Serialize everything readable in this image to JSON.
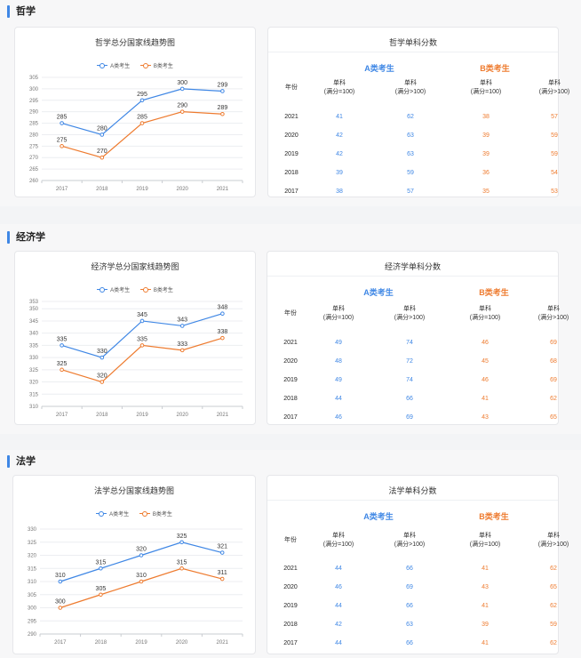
{
  "sections": [
    {
      "title": "哲学",
      "chart": {
        "title": "哲学总分国家线趋势图",
        "legend": [
          "A类考生",
          "B类考生"
        ],
        "colors": [
          "#3f87e5",
          "#ee7b2f"
        ]
      },
      "table": {
        "title": "哲学单科分数",
        "group_a": "A类考生",
        "group_b": "B类考生",
        "col_year": "年份",
        "col_h1": [
          "单科",
          "(满分=100)"
        ],
        "col_h2": [
          "单科",
          "(满分>100)"
        ],
        "rows": [
          {
            "year": "2021",
            "a1": "41",
            "a2": "62",
            "b1": "38",
            "b2": "57"
          },
          {
            "year": "2020",
            "a1": "42",
            "a2": "63",
            "b1": "39",
            "b2": "59"
          },
          {
            "year": "2019",
            "a1": "42",
            "a2": "63",
            "b1": "39",
            "b2": "59"
          },
          {
            "year": "2018",
            "a1": "39",
            "a2": "59",
            "b1": "36",
            "b2": "54"
          },
          {
            "year": "2017",
            "a1": "38",
            "a2": "57",
            "b1": "35",
            "b2": "53"
          }
        ]
      }
    },
    {
      "title": "经济学",
      "chart": {
        "title": "经济学总分国家线趋势图",
        "legend": [
          "A类考生",
          "B类考生"
        ],
        "colors": [
          "#3f87e5",
          "#ee7b2f"
        ]
      },
      "table": {
        "title": "经济学单科分数",
        "group_a": "A类考生",
        "group_b": "B类考生",
        "col_year": "年份",
        "col_h1": [
          "单科",
          "(满分=100)"
        ],
        "col_h2": [
          "单科",
          "(满分>100)"
        ],
        "rows": [
          {
            "year": "2021",
            "a1": "49",
            "a2": "74",
            "b1": "46",
            "b2": "69"
          },
          {
            "year": "2020",
            "a1": "48",
            "a2": "72",
            "b1": "45",
            "b2": "68"
          },
          {
            "year": "2019",
            "a1": "49",
            "a2": "74",
            "b1": "46",
            "b2": "69"
          },
          {
            "year": "2018",
            "a1": "44",
            "a2": "66",
            "b1": "41",
            "b2": "62"
          },
          {
            "year": "2017",
            "a1": "46",
            "a2": "69",
            "b1": "43",
            "b2": "65"
          }
        ]
      }
    },
    {
      "title": "法学",
      "chart": {
        "title": "法学总分国家线趋势图",
        "legend": [
          "A类考生",
          "B类考生"
        ],
        "colors": [
          "#3f87e5",
          "#ee7b2f"
        ]
      },
      "table": {
        "title": "法学单科分数",
        "group_a": "A类考生",
        "group_b": "B类考生",
        "col_year": "年份",
        "col_h1": [
          "单科",
          "(满分=100)"
        ],
        "col_h2": [
          "单科",
          "(满分>100)"
        ],
        "rows": [
          {
            "year": "2021",
            "a1": "44",
            "a2": "66",
            "b1": "41",
            "b2": "62"
          },
          {
            "year": "2020",
            "a1": "46",
            "a2": "69",
            "b1": "43",
            "b2": "65"
          },
          {
            "year": "2019",
            "a1": "44",
            "a2": "66",
            "b1": "41",
            "b2": "62"
          },
          {
            "year": "2018",
            "a1": "42",
            "a2": "63",
            "b1": "39",
            "b2": "59"
          },
          {
            "year": "2017",
            "a1": "44",
            "a2": "66",
            "b1": "41",
            "b2": "62"
          }
        ]
      }
    }
  ],
  "chart_data": [
    {
      "type": "line",
      "title": "哲学总分国家线趋势图",
      "x": [
        "2017",
        "2018",
        "2019",
        "2020",
        "2021"
      ],
      "series": [
        {
          "name": "A类考生",
          "values": [
            285,
            280,
            295,
            300,
            299
          ]
        },
        {
          "name": "B类考生",
          "values": [
            275,
            270,
            285,
            290,
            289
          ]
        }
      ],
      "yticks": [
        260,
        265,
        270,
        275,
        280,
        285,
        290,
        295,
        300,
        305
      ],
      "ylim": [
        260,
        305
      ],
      "legend": "top-center"
    },
    {
      "type": "line",
      "title": "经济学总分国家线趋势图",
      "x": [
        "2017",
        "2018",
        "2019",
        "2020",
        "2021"
      ],
      "series": [
        {
          "name": "A类考生",
          "values": [
            335,
            330,
            345,
            343,
            348
          ]
        },
        {
          "name": "B类考生",
          "values": [
            325,
            320,
            335,
            333,
            338
          ]
        }
      ],
      "yticks": [
        310,
        315,
        320,
        325,
        330,
        335,
        340,
        345,
        350,
        353
      ],
      "ylim": [
        310,
        353
      ],
      "legend": "top-center"
    },
    {
      "type": "line",
      "title": "法学总分国家线趋势图",
      "x": [
        "2017",
        "2018",
        "2019",
        "2020",
        "2021"
      ],
      "series": [
        {
          "name": "A类考生",
          "values": [
            310,
            315,
            320,
            325,
            321
          ]
        },
        {
          "name": "B类考生",
          "values": [
            300,
            305,
            310,
            315,
            311
          ]
        }
      ],
      "yticks": [
        290,
        295,
        300,
        305,
        310,
        315,
        320,
        325,
        330
      ],
      "ylim": [
        290,
        330
      ],
      "legend": "top-center"
    }
  ]
}
